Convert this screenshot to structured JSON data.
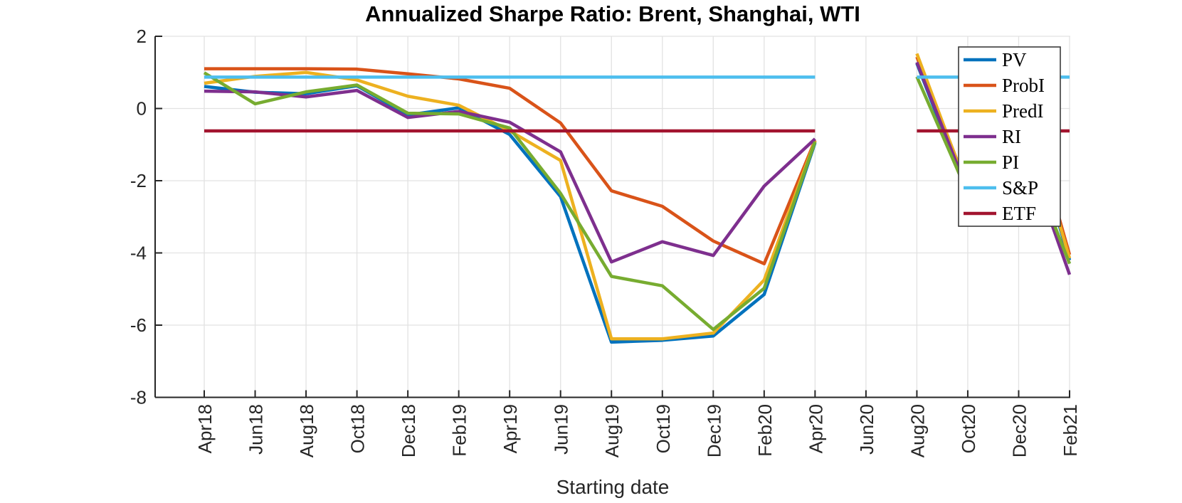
{
  "chart_data": {
    "type": "line",
    "title": "Annualized Sharpe Ratio: Brent, Shanghai, WTI",
    "xlabel": "Starting date",
    "ylabel": "",
    "x_tick_labels": [
      "Apr18",
      "Jun18",
      "Aug18",
      "Oct18",
      "Dec18",
      "Feb19",
      "Apr19",
      "Jun19",
      "Aug19",
      "Oct19",
      "Dec19",
      "Feb20",
      "Apr20",
      "Jun20",
      "Aug20",
      "Oct20",
      "Dec20",
      "Feb21"
    ],
    "y_ticks": [
      2,
      0,
      -2,
      -4,
      -6,
      -8
    ],
    "ylim": [
      -8,
      2
    ],
    "grid": true,
    "legend_position": "upper right",
    "gap_at": "Jun20",
    "series": [
      {
        "name": "PV",
        "color": "#0072BD",
        "values": [
          0.61,
          0.45,
          0.41,
          0.63,
          -0.18,
          0.02,
          -0.72,
          -2.44,
          -6.47,
          -6.42,
          -6.3,
          -5.15,
          -0.95,
          null,
          1.25,
          -2.4,
          0.55,
          -4.2
        ]
      },
      {
        "name": "ProbI",
        "color": "#D95319",
        "values": [
          1.1,
          1.1,
          1.1,
          1.09,
          0.96,
          0.82,
          0.56,
          -0.4,
          -2.28,
          -2.71,
          -3.67,
          -4.3,
          -0.88,
          null,
          1.43,
          -2.2,
          0.9,
          -4.05
        ]
      },
      {
        "name": "PredI",
        "color": "#EDB120",
        "values": [
          0.7,
          0.89,
          1.0,
          0.79,
          0.34,
          0.09,
          -0.62,
          -1.44,
          -6.38,
          -6.38,
          -6.22,
          -4.75,
          -0.9,
          null,
          1.52,
          -2.25,
          0.7,
          -4.15
        ]
      },
      {
        "name": "RI",
        "color": "#7E2F8E",
        "values": [
          0.48,
          0.46,
          0.32,
          0.5,
          -0.25,
          -0.08,
          -0.38,
          -1.2,
          -4.25,
          -3.69,
          -4.07,
          -2.15,
          -0.84,
          null,
          1.28,
          -2.3,
          -0.6,
          -4.6
        ]
      },
      {
        "name": "PI",
        "color": "#77AC30",
        "values": [
          0.99,
          0.13,
          0.46,
          0.65,
          -0.13,
          -0.15,
          -0.54,
          -2.35,
          -4.65,
          -4.91,
          -6.12,
          -4.98,
          -0.92,
          null,
          0.88,
          -2.35,
          -0.7,
          -4.3
        ]
      },
      {
        "name": "S&P",
        "color": "#4DBEEE",
        "values": [
          0.87,
          0.87,
          0.87,
          0.87,
          0.87,
          0.87,
          0.87,
          0.87,
          0.87,
          0.87,
          0.87,
          0.87,
          0.87,
          null,
          0.87,
          0.87,
          0.87,
          0.87
        ]
      },
      {
        "name": "ETF",
        "color": "#A2142F",
        "values": [
          -0.62,
          -0.62,
          -0.62,
          -0.62,
          -0.62,
          -0.62,
          -0.62,
          -0.62,
          -0.62,
          -0.62,
          -0.62,
          -0.62,
          -0.62,
          null,
          -0.62,
          -0.62,
          -0.62,
          -0.62
        ]
      }
    ],
    "colors": {
      "axis": "#262626",
      "grid": "#e2e2e2",
      "legend_border": "#3b3b3b",
      "legend_background": "#ffffff"
    }
  }
}
